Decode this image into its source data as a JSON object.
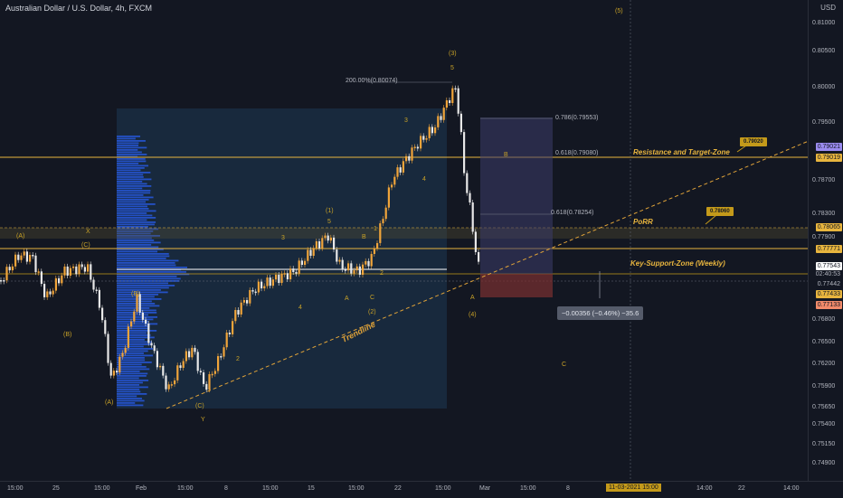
{
  "title": "Australian Dollar / U.S. Dollar, 4h, FXCM",
  "currency": "USD",
  "colors": {
    "up": "#f0a43a",
    "down": "#e8e8e8",
    "bg": "#131722",
    "accent": "#c49a1a",
    "profile": "#2962ff"
  },
  "price_axis": [
    "0.81000",
    "0.80500",
    "0.80000",
    "0.79500",
    "0.78700",
    "0.78300",
    "0.77900",
    "0.76800",
    "0.76500",
    "0.76200",
    "0.75900",
    "0.75650",
    "0.75400",
    "0.75150",
    "0.74900"
  ],
  "price_tags": [
    {
      "label": "0.79021",
      "color": "#9b8cf0"
    },
    {
      "label": "0.79019",
      "color": "#e8b53e"
    },
    {
      "label": "0.78065",
      "color": "#e8b53e"
    },
    {
      "label": "0.77771",
      "color": "#e8b53e"
    },
    {
      "label": "0.77543",
      "color": "#ffffff"
    },
    {
      "label": "02:40:53",
      "color": "#131722"
    },
    {
      "label": "0.77442",
      "color": "#131722"
    },
    {
      "label": "0.77433",
      "color": "#e8b53e"
    },
    {
      "label": "0.77133",
      "color": "#f28b6a"
    }
  ],
  "time_axis": [
    "15:00",
    "25",
    "15:00",
    "Feb",
    "15:00",
    "8",
    "15:00",
    "15",
    "15:00",
    "22",
    "15:00",
    "Mar",
    "15:00",
    "8",
    "15:00",
    "15",
    "14:00",
    "22",
    "14:00"
  ],
  "time_highlight": "11-03-2021  15:00",
  "annotations": {
    "resistance": "Resistance and Target-Zone",
    "porr": "PoRR",
    "support": "Key-Support-Zone (Weekly)",
    "trendline": "Trendline",
    "flag1": "0.79020",
    "flag2": "0.78060",
    "measure": "−0.00356 (−0.46%) −35.6"
  },
  "fib": {
    "f200": "200.00%(0.80074)",
    "f786": "0.786(0.79553)",
    "f618a": "0.618(0.79080)",
    "f618b": "0.618(0.78254)"
  },
  "waves": {
    "w_a_left": "(A)",
    "w_c_left": "(C)",
    "w_b_left": "(B)",
    "w_a2": "(A)",
    "w_b2": "(B)",
    "w_c2": "(C)",
    "w_x": "X",
    "w_y": "Y",
    "w1": "(1)",
    "w5a": "5",
    "w3a": "3",
    "w2": "(2)",
    "w_a": "A",
    "w_b": "B",
    "w_c": "C",
    "w3": "3",
    "w4": "4",
    "w1b": "1",
    "w2b": "2",
    "w4b": "4",
    "w3top": "(3)",
    "w5top": "5",
    "w4bot": "(4)",
    "w_abot": "A",
    "w_cbot": "C",
    "w5far": "(5)",
    "w_b3": "B",
    "w_i2": "2",
    "w_i4": "4"
  }
}
